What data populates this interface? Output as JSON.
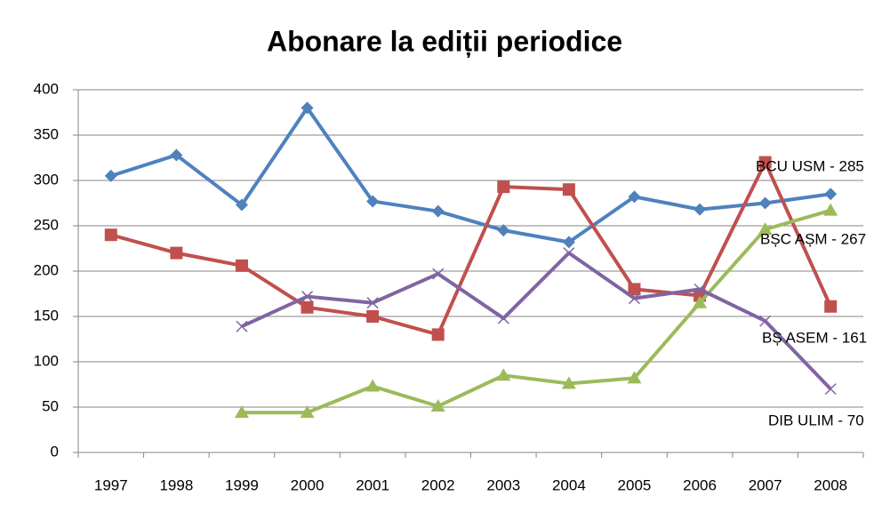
{
  "chart_data": {
    "type": "line",
    "title": "Abonare la ediții periodice",
    "categories": [
      "1997",
      "1998",
      "1999",
      "2000",
      "2001",
      "2002",
      "2003",
      "2004",
      "2005",
      "2006",
      "2007",
      "2008"
    ],
    "series": [
      {
        "color": "#4f81bd",
        "marker": "diamond",
        "values": [
          305,
          328,
          273,
          380,
          277,
          266,
          245,
          232,
          282,
          268,
          275,
          285
        ]
      },
      {
        "color": "#c0504d",
        "marker": "square",
        "values": [
          240,
          220,
          206,
          160,
          150,
          130,
          293,
          290,
          180,
          173,
          320,
          161
        ]
      },
      {
        "color": "#9bbb59",
        "marker": "triangle",
        "values": [
          null,
          null,
          44,
          44,
          73,
          51,
          85,
          76,
          82,
          165,
          246,
          267
        ]
      },
      {
        "color": "#8064a2",
        "marker": "x",
        "values": [
          null,
          null,
          139,
          172,
          165,
          197,
          148,
          220,
          170,
          180,
          145,
          70
        ]
      }
    ],
    "annotations": [
      "BCU USM - 285",
      "BȘC AȘM - 267",
      "BȘ ASEM - 161",
      "DIB ULIM - 70"
    ],
    "ylim": [
      0,
      400
    ],
    "yticks": [
      0,
      50,
      100,
      150,
      200,
      250,
      300,
      350,
      400
    ],
    "grid": true
  }
}
